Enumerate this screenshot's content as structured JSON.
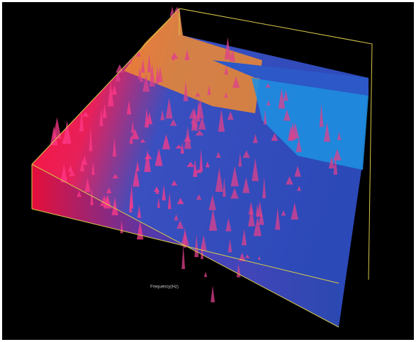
{
  "chart_data": {
    "type": "surface3d",
    "x_label": "Frequency(Hz)"
  }
}
